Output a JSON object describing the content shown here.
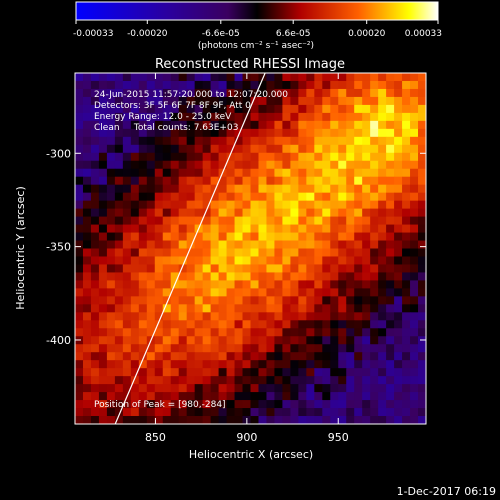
{
  "colorbar": {
    "tick_labels": [
      "-0.00033",
      "-0.00020",
      "-6.6e-05",
      "6.6e-05",
      "0.00020",
      "0.00033"
    ],
    "tick_values": [
      -0.00033,
      -0.0002,
      -6.6e-05,
      6.6e-05,
      0.0002,
      0.00033
    ],
    "range": [
      -0.00033,
      0.00033
    ],
    "label": "(photons cm⁻² s⁻¹ asec⁻²)",
    "colors": [
      "#0000ff",
      "#2a00a0",
      "#3a0060",
      "#000000",
      "#b00000",
      "#ff6000",
      "#ffff00",
      "#ffffff"
    ]
  },
  "chart_data": {
    "type": "heatmap",
    "title": "Reconstructed RHESSI Image",
    "xlabel": "Heliocentric X (arcsec)",
    "ylabel": "Heliocentric Y (arcsec)",
    "xlim": [
      806,
      998
    ],
    "ylim": [
      -445,
      -257
    ],
    "x_ticks": [
      850,
      900,
      950
    ],
    "y_ticks": [
      -300,
      -350,
      -400
    ],
    "annotations": [
      "24-Jun-2015 11:57:20.000 to 12:07:20.000",
      "Detectors: 3F 5F 6F 7F 8F 9F, Att 0",
      "Energy Range: 12.0 - 25.0 keV",
      "Clean     Total counts: 7.63E+03"
    ],
    "peak_label": "Position of Peak = [980,-284]",
    "peak": [
      980,
      -284
    ],
    "limb_line": [
      [
        828,
        -445
      ],
      [
        910,
        -257
      ]
    ],
    "flux_range": [
      -0.00033,
      0.00033
    ]
  },
  "footer": {
    "date": "1-Dec-2017 06:19"
  }
}
